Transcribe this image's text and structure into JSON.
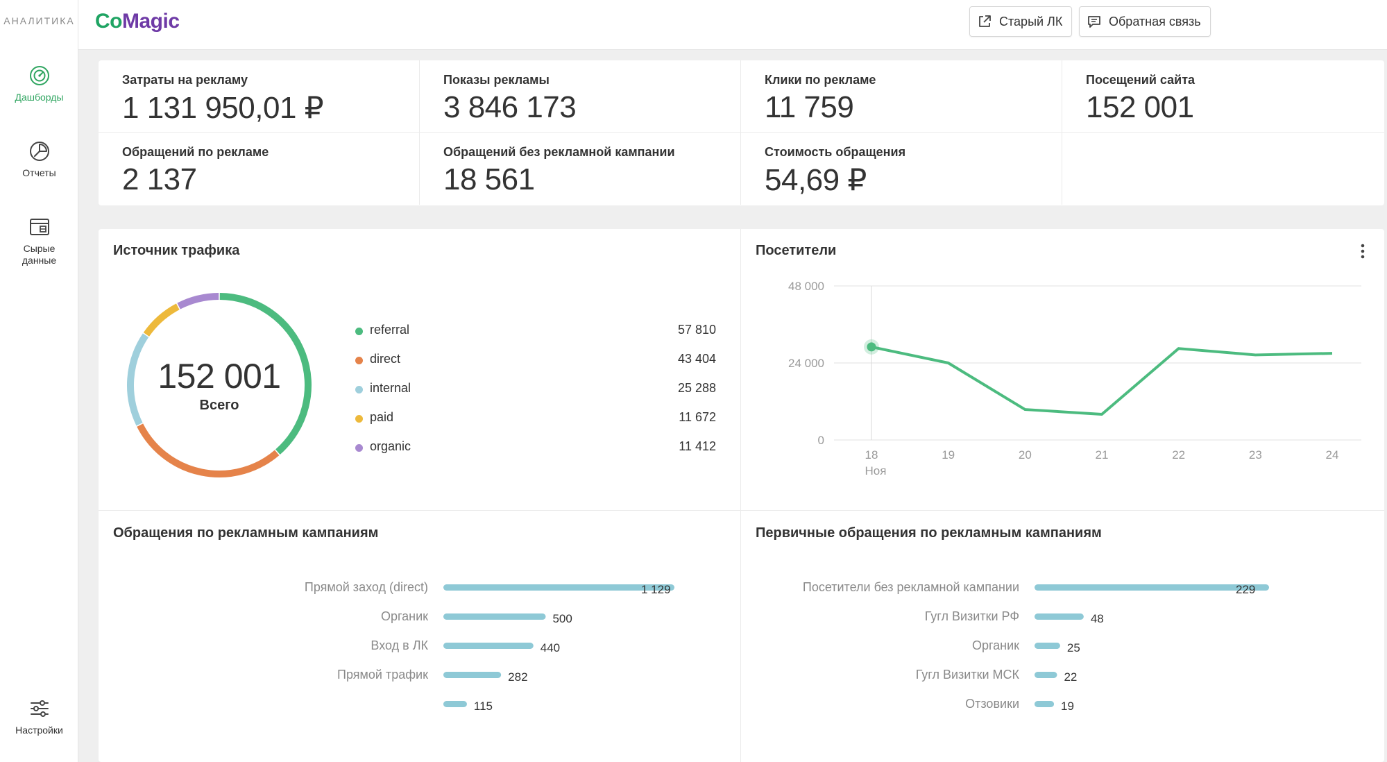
{
  "sidebar": {
    "brand": "АНАЛИТИКА",
    "items": [
      {
        "label_lines": [
          "Дашборды"
        ],
        "icon": "dashboard-icon",
        "active": true
      },
      {
        "label_lines": [
          "Отчеты"
        ],
        "icon": "reports-icon",
        "active": false
      },
      {
        "label_lines": [
          "Сырые",
          "данные"
        ],
        "icon": "raw-data-icon",
        "active": false
      }
    ],
    "settings_label": "Настройки"
  },
  "topbar": {
    "logo_co": "Co",
    "logo_magic": "Magic",
    "old_lk_label": "Старый ЛК",
    "feedback_label": "Обратная связь"
  },
  "kpis": [
    {
      "title": "Затраты на рекламу",
      "value": "1 131 950,01 ₽"
    },
    {
      "title": "Показы рекламы",
      "value": "3 846 173"
    },
    {
      "title": "Клики по рекламе",
      "value": "11 759"
    },
    {
      "title": "Посещений сайта",
      "value": "152 001"
    },
    {
      "title": "Обращений по рекламе",
      "value": "2 137"
    },
    {
      "title": "Обращений без рекламной кампании",
      "value": "18 561"
    },
    {
      "title": "Стоимость обращения",
      "value": "54,69 ₽"
    }
  ],
  "traffic": {
    "title": "Источник трафика",
    "total": "152 001",
    "total_label": "Всего",
    "colors": [
      "#4cbb7f",
      "#e5834a",
      "#9fcfdc",
      "#edb93b",
      "#a889d0"
    ],
    "sources": [
      {
        "name": "referral",
        "value": 57810,
        "display": "57 810"
      },
      {
        "name": "direct",
        "value": 43404,
        "display": "43 404"
      },
      {
        "name": "internal",
        "value": 25288,
        "display": "25 288"
      },
      {
        "name": "paid",
        "value": 11672,
        "display": "11 672"
      },
      {
        "name": "organic",
        "value": 11412,
        "display": "11 412"
      }
    ]
  },
  "visitors": {
    "title": "Посетители",
    "month_label": "Ноя",
    "y_tick_labels": [
      "48 000",
      "24 000",
      "0"
    ],
    "chart_data": {
      "type": "line",
      "x": [
        18,
        19,
        20,
        21,
        22,
        23,
        24
      ],
      "values": [
        29000,
        24000,
        9500,
        8000,
        28500,
        26500,
        27000
      ],
      "ylim": [
        0,
        48000
      ],
      "y_ticks": [
        0,
        24000,
        48000
      ],
      "color": "#4cbb7f"
    }
  },
  "campaigns": {
    "title": "Обращения по рекламным кампаниям",
    "bar_color": "#8ec9d6",
    "chart_data": {
      "type": "bar",
      "categories": [
        "Прямой заход (direct)",
        "Органик",
        "Вход в ЛК",
        "Прямой трафик",
        ""
      ],
      "values": [
        1129,
        500,
        440,
        282,
        115
      ],
      "value_labels": [
        "1 129",
        "500",
        "440",
        "282",
        "115"
      ],
      "xlim": [
        0,
        1129
      ]
    }
  },
  "primary": {
    "title": "Первичные обращения по рекламным кампаниям",
    "bar_color": "#8ec9d6",
    "chart_data": {
      "type": "bar",
      "categories": [
        "Посетители без рекламной кампании",
        "Гугл Визитки РФ",
        "Органик",
        "Гугл Визитки МСК",
        "Отзовики"
      ],
      "values": [
        229,
        48,
        25,
        22,
        19
      ],
      "value_labels": [
        "229",
        "48",
        "25",
        "22",
        "19"
      ],
      "xlim": [
        0,
        229
      ]
    }
  }
}
